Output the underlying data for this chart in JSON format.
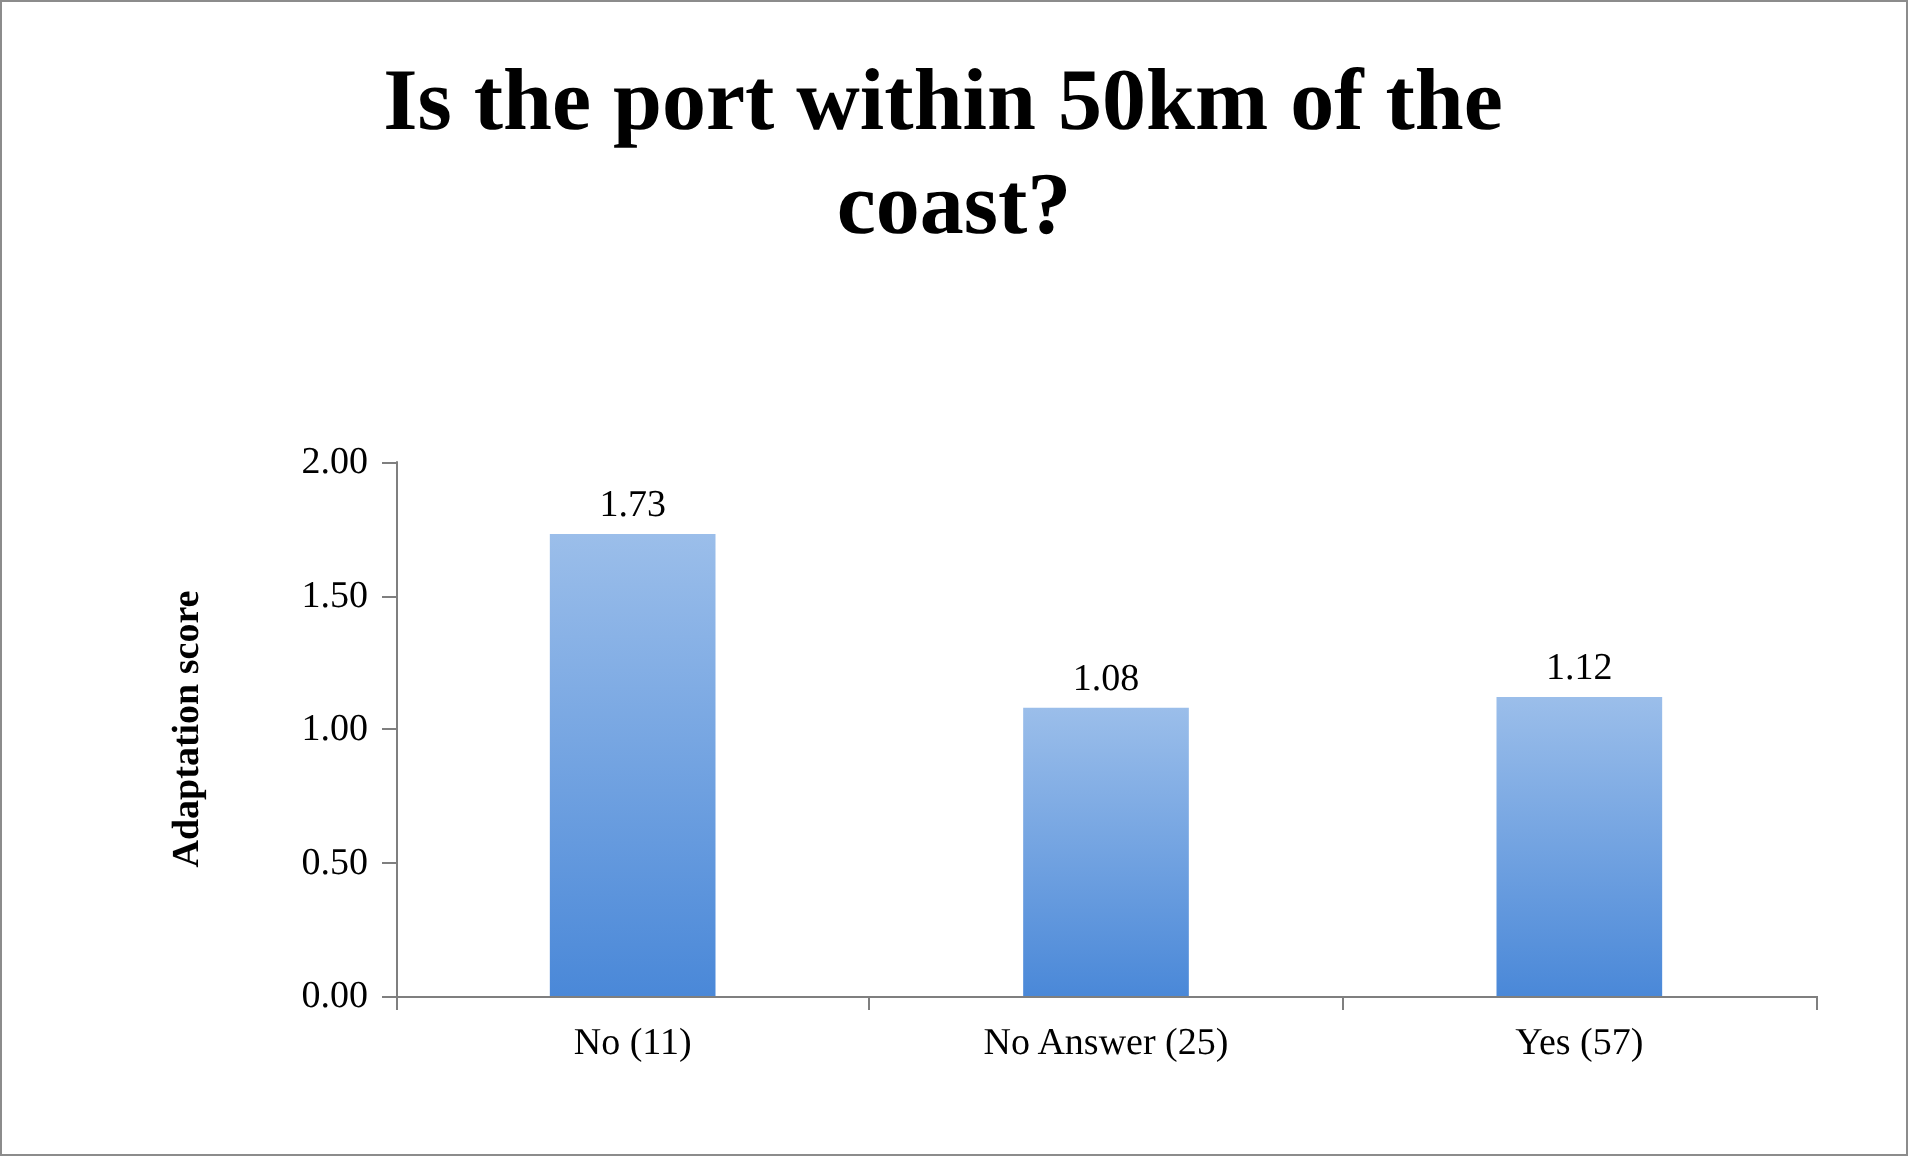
{
  "chart_data": {
    "type": "bar",
    "title": "Is the port within 50km of the coast?",
    "ylabel": "Adaptation score",
    "categories": [
      "No (11)",
      "No Answer (25)",
      "Yes (57)"
    ],
    "values": [
      1.73,
      1.08,
      1.12
    ],
    "color": "#4a88d8",
    "ylim": [
      0,
      2
    ],
    "yticks": [
      {
        "value": 0,
        "label": "0.00"
      },
      {
        "value": 0.5,
        "label": "0.50"
      },
      {
        "value": 1,
        "label": "1.00"
      },
      {
        "value": 1.5,
        "label": "1.50"
      },
      {
        "value": 2,
        "label": "2.00"
      }
    ],
    "grid": false,
    "data_labels": true
  }
}
